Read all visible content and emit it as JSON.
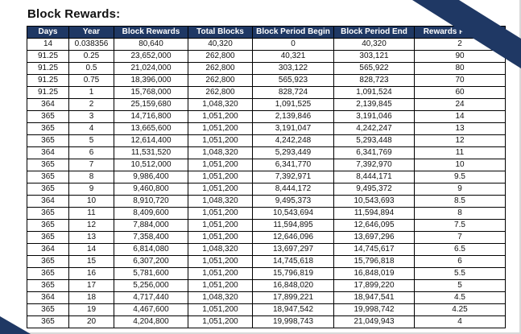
{
  "title": "Block Rewards:",
  "accent_color": "#1f3864",
  "table": {
    "headers": [
      "Days",
      "Year",
      "Block Rewards",
      "Total Blocks",
      "Block Period Begin",
      "Block Period End",
      "Rewards Per Block"
    ],
    "rows": [
      [
        "14",
        "0.038356",
        "80,640",
        "40,320",
        "0",
        "40,320",
        "2"
      ],
      [
        "91.25",
        "0.25",
        "23,652,000",
        "262,800",
        "40,321",
        "303,121",
        "90"
      ],
      [
        "91.25",
        "0.5",
        "21,024,000",
        "262,800",
        "303,122",
        "565,922",
        "80"
      ],
      [
        "91.25",
        "0.75",
        "18,396,000",
        "262,800",
        "565,923",
        "828,723",
        "70"
      ],
      [
        "91.25",
        "1",
        "15,768,000",
        "262,800",
        "828,724",
        "1,091,524",
        "60"
      ],
      [
        "364",
        "2",
        "25,159,680",
        "1,048,320",
        "1,091,525",
        "2,139,845",
        "24"
      ],
      [
        "365",
        "3",
        "14,716,800",
        "1,051,200",
        "2,139,846",
        "3,191,046",
        "14"
      ],
      [
        "365",
        "4",
        "13,665,600",
        "1,051,200",
        "3,191,047",
        "4,242,247",
        "13"
      ],
      [
        "365",
        "5",
        "12,614,400",
        "1,051,200",
        "4,242,248",
        "5,293,448",
        "12"
      ],
      [
        "364",
        "6",
        "11,531,520",
        "1,048,320",
        "5,293,449",
        "6,341,769",
        "11"
      ],
      [
        "365",
        "7",
        "10,512,000",
        "1,051,200",
        "6,341,770",
        "7,392,970",
        "10"
      ],
      [
        "365",
        "8",
        "9,986,400",
        "1,051,200",
        "7,392,971",
        "8,444,171",
        "9.5"
      ],
      [
        "365",
        "9",
        "9,460,800",
        "1,051,200",
        "8,444,172",
        "9,495,372",
        "9"
      ],
      [
        "364",
        "10",
        "8,910,720",
        "1,048,320",
        "9,495,373",
        "10,543,693",
        "8.5"
      ],
      [
        "365",
        "11",
        "8,409,600",
        "1,051,200",
        "10,543,694",
        "11,594,894",
        "8"
      ],
      [
        "365",
        "12",
        "7,884,000",
        "1,051,200",
        "11,594,895",
        "12,646,095",
        "7.5"
      ],
      [
        "365",
        "13",
        "7,358,400",
        "1,051,200",
        "12,646,096",
        "13,697,296",
        "7"
      ],
      [
        "364",
        "14",
        "6,814,080",
        "1,048,320",
        "13,697,297",
        "14,745,617",
        "6.5"
      ],
      [
        "365",
        "15",
        "6,307,200",
        "1,051,200",
        "14,745,618",
        "15,796,818",
        "6"
      ],
      [
        "365",
        "16",
        "5,781,600",
        "1,051,200",
        "15,796,819",
        "16,848,019",
        "5.5"
      ],
      [
        "365",
        "17",
        "5,256,000",
        "1,051,200",
        "16,848,020",
        "17,899,220",
        "5"
      ],
      [
        "364",
        "18",
        "4,717,440",
        "1,048,320",
        "17,899,221",
        "18,947,541",
        "4.5"
      ],
      [
        "365",
        "19",
        "4,467,600",
        "1,051,200",
        "18,947,542",
        "19,998,742",
        "4.25"
      ],
      [
        "365",
        "20",
        "4,204,800",
        "1,051,200",
        "19,998,743",
        "21,049,943",
        "4"
      ]
    ]
  }
}
